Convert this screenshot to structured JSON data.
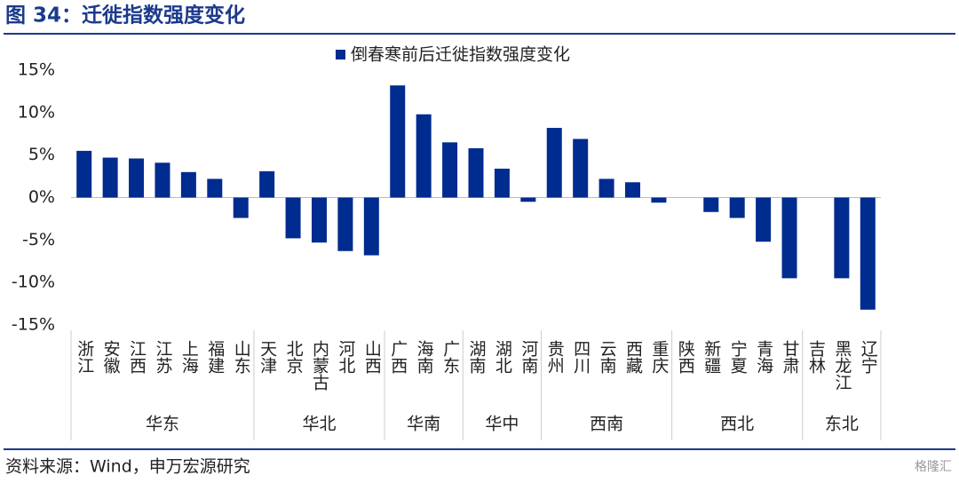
{
  "chart_data": {
    "type": "bar",
    "title": "图 34：迁徙指数强度变化",
    "source": "资料来源：Wind，申万宏源研究",
    "watermark": "格隆汇",
    "groups": [
      {
        "name": "华东",
        "categories": [
          "浙江",
          "安徽",
          "江西",
          "江苏",
          "上海",
          "福建",
          "山东"
        ]
      },
      {
        "name": "华北",
        "categories": [
          "天津",
          "北京",
          "内蒙古",
          "河北",
          "山西"
        ]
      },
      {
        "name": "华南",
        "categories": [
          "广西",
          "海南",
          "广东"
        ]
      },
      {
        "name": "华中",
        "categories": [
          "湖南",
          "湖北",
          "河南"
        ]
      },
      {
        "name": "西南",
        "categories": [
          "贵州",
          "四川",
          "云南",
          "西藏",
          "重庆"
        ]
      },
      {
        "name": "西北",
        "categories": [
          "陕西",
          "新疆",
          "宁夏",
          "青海",
          "甘肃"
        ]
      },
      {
        "name": "东北",
        "categories": [
          "吉林",
          "黑龙江",
          "辽宁"
        ]
      }
    ],
    "series": [
      {
        "name": "倒春寒前后迁徙指数强度变化",
        "color": "#002b8f",
        "values": [
          5.5,
          4.7,
          4.6,
          4.1,
          3.0,
          2.2,
          -2.4,
          3.1,
          -4.8,
          -5.3,
          -6.3,
          -6.8,
          13.2,
          9.8,
          6.5,
          5.8,
          3.4,
          -0.5,
          8.2,
          6.9,
          2.2,
          1.8,
          -0.6,
          0,
          -1.7,
          -2.4,
          -5.2,
          -9.5,
          0,
          -9.5,
          -13.2
        ]
      }
    ],
    "ylim": [
      -15,
      15
    ],
    "yticks": [
      {
        "value": -15,
        "label": "-15%"
      },
      {
        "value": -10,
        "label": "-10%"
      },
      {
        "value": -5,
        "label": "-5%"
      },
      {
        "value": 0,
        "label": "0%"
      },
      {
        "value": 5,
        "label": "5%"
      },
      {
        "value": 10,
        "label": "10%"
      },
      {
        "value": 15,
        "label": "15%"
      }
    ],
    "legend": "top"
  }
}
